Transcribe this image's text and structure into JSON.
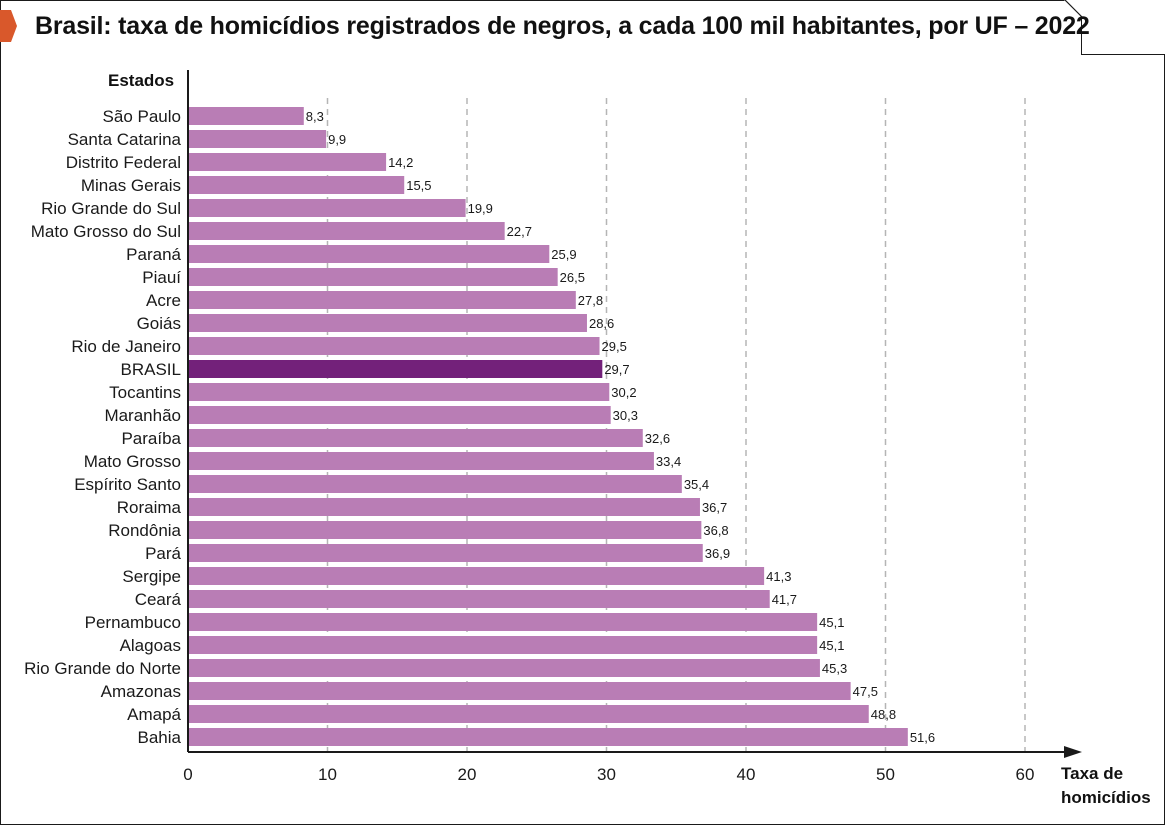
{
  "title": "Brasil: taxa de homicídios registrados de negros, a cada 100 mil habitantes, por UF – 2022",
  "colors": {
    "bar": "#b97db5",
    "highlight": "#73217a",
    "grid": "#b5b5b5",
    "axis": "#1a1a1a",
    "accent": "#d9582b"
  },
  "chart_data": {
    "type": "bar",
    "orientation": "horizontal",
    "ylabel": "Estados",
    "xlabel": "Taxa de homicídios",
    "xlabel_lines": [
      "Taxa de",
      "homicídios"
    ],
    "xlim": [
      0,
      60
    ],
    "xticks": [
      "0",
      "10",
      "20",
      "30",
      "40",
      "50",
      "60"
    ],
    "grid": "vertical dashed",
    "highlight": "BRASIL",
    "categories": [
      "São Paulo",
      "Santa Catarina",
      "Distrito Federal",
      "Minas Gerais",
      "Rio Grande do Sul",
      "Mato Grosso do Sul",
      "Paraná",
      "Piauí",
      "Acre",
      "Goiás",
      "Rio de Janeiro",
      "BRASIL",
      "Tocantins",
      "Maranhão",
      "Paraíba",
      "Mato Grosso",
      "Espírito Santo",
      "Roraima",
      "Rondônia",
      "Pará",
      "Sergipe",
      "Ceará",
      "Pernambuco",
      "Alagoas",
      "Rio Grande do Norte",
      "Amazonas",
      "Amapá",
      "Bahia"
    ],
    "values": [
      8.3,
      9.9,
      14.2,
      15.5,
      19.9,
      22.7,
      25.9,
      26.5,
      27.8,
      28.6,
      29.5,
      29.7,
      30.2,
      30.3,
      32.6,
      33.4,
      35.4,
      36.7,
      36.8,
      36.9,
      41.3,
      41.7,
      45.1,
      45.1,
      45.3,
      47.5,
      48.8,
      51.6
    ],
    "value_labels": [
      "8,3",
      "9,9",
      "14,2",
      "15,5",
      "19,9",
      "22,7",
      "25,9",
      "26,5",
      "27,8",
      "28,6",
      "29,5",
      "29,7",
      "30,2",
      "30,3",
      "32,6",
      "33,4",
      "35,4",
      "36,7",
      "36,8",
      "36,9",
      "41,3",
      "41,7",
      "45,1",
      "45,1",
      "45,3",
      "47,5",
      "48,8",
      "51,6"
    ]
  }
}
